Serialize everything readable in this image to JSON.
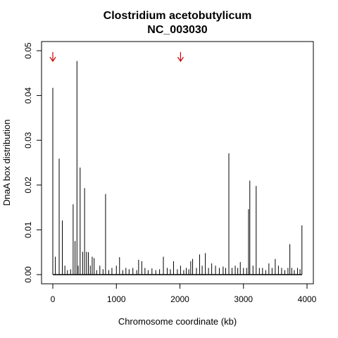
{
  "chart_data": {
    "type": "bar",
    "title": "Clostridium acetobutylicum",
    "subtitle": "NC_003030",
    "xlabel": "Chromosome coordinate (kb)",
    "ylabel": "DnaA box distribution",
    "xlim": [
      -60,
      4000
    ],
    "ylim": [
      0,
      0.05
    ],
    "xticks": [
      0,
      1000,
      2000,
      3000,
      4000
    ],
    "xtick_labels": [
      "0",
      "1000",
      "2000",
      "3000",
      "4000"
    ],
    "yticks": [
      0,
      0.01,
      0.02,
      0.03,
      0.04,
      0.05
    ],
    "ytick_labels": [
      "0.00",
      "0.01",
      "0.02",
      "0.03",
      "0.04",
      "0.05"
    ],
    "grid": false,
    "bar_color": "#000000",
    "arrow_color": "#cc0000",
    "arrows_x": [
      0,
      2010
    ],
    "x": [
      0,
      40,
      100,
      150,
      190,
      230,
      280,
      320,
      350,
      380,
      400,
      430,
      470,
      500,
      530,
      560,
      590,
      620,
      650,
      690,
      740,
      790,
      830,
      880,
      930,
      1000,
      1050,
      1100,
      1150,
      1200,
      1260,
      1320,
      1350,
      1400,
      1450,
      1500,
      1560,
      1620,
      1680,
      1740,
      1800,
      1850,
      1900,
      1960,
      2010,
      2060,
      2100,
      2140,
      2170,
      2200,
      2260,
      2310,
      2350,
      2400,
      2450,
      2500,
      2560,
      2620,
      2680,
      2720,
      2770,
      2820,
      2870,
      2910,
      2950,
      3000,
      3050,
      3080,
      3100,
      3150,
      3200,
      3250,
      3300,
      3350,
      3400,
      3450,
      3500,
      3550,
      3600,
      3650,
      3700,
      3730,
      3760,
      3800,
      3850,
      3890,
      3920
    ],
    "values": [
      0.0417,
      0.004,
      0.0259,
      0.0121,
      0.002,
      0.001,
      0.0012,
      0.0157,
      0.0075,
      0.0477,
      0.002,
      0.0239,
      0.0051,
      0.0193,
      0.0051,
      0.005,
      0.002,
      0.004,
      0.0037,
      0.001,
      0.002,
      0.0012,
      0.018,
      0.001,
      0.0015,
      0.002,
      0.0039,
      0.001,
      0.0015,
      0.0012,
      0.0015,
      0.001,
      0.0033,
      0.003,
      0.0015,
      0.001,
      0.0014,
      0.001,
      0.0012,
      0.004,
      0.0015,
      0.0012,
      0.003,
      0.0012,
      0.002,
      0.001,
      0.0015,
      0.0012,
      0.003,
      0.0035,
      0.0015,
      0.0045,
      0.002,
      0.0048,
      0.0015,
      0.0025,
      0.002,
      0.0015,
      0.0018,
      0.0015,
      0.0271,
      0.0015,
      0.002,
      0.0015,
      0.0028,
      0.0015,
      0.0015,
      0.0146,
      0.021,
      0.002,
      0.0198,
      0.0015,
      0.0015,
      0.001,
      0.0025,
      0.0015,
      0.0035,
      0.002,
      0.0015,
      0.001,
      0.0015,
      0.0068,
      0.0015,
      0.001,
      0.0015,
      0.0012,
      0.011
    ]
  }
}
